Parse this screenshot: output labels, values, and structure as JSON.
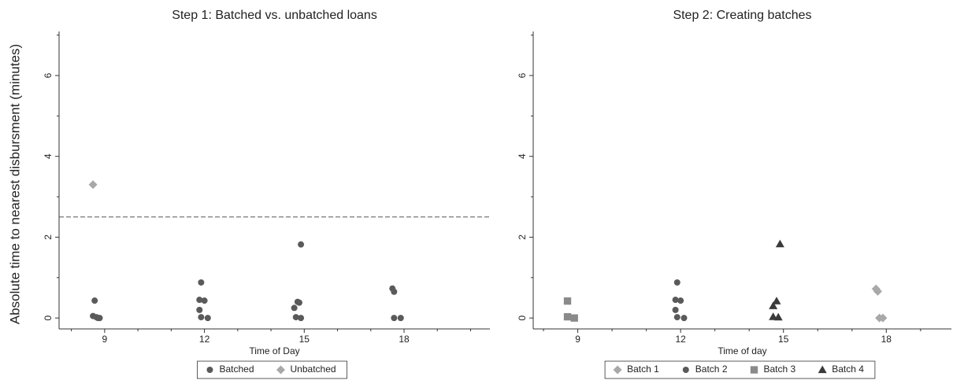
{
  "chart_data": [
    {
      "type": "scatter",
      "title": "Step 1: Batched vs. unbatched loans",
      "ylabel": "Absolute time to nearest disbursment (minutes)",
      "xlabel": "Time of Day",
      "xlim": [
        7.63,
        20.58
      ],
      "xticks": [
        9,
        12,
        15,
        18
      ],
      "xminorticks": [
        8,
        10,
        11,
        13,
        14,
        16,
        17,
        19,
        20
      ],
      "ylim": [
        -0.27,
        7.09
      ],
      "yticks": [
        0,
        2,
        4,
        6
      ],
      "yminorticks": [
        1,
        3,
        5,
        7
      ],
      "hline": 2.5,
      "legend": "bottom",
      "series": [
        {
          "name": "Batched",
          "color": "#5a5a5a",
          "marker": "circle",
          "x": [
            8.7,
            8.65,
            8.75,
            8.85,
            8.8,
            11.9,
            11.85,
            12.0,
            11.85,
            11.9,
            12.1,
            14.7,
            14.8,
            14.85,
            14.9,
            14.75,
            14.9,
            17.65,
            17.7,
            17.7,
            17.9
          ],
          "values": [
            0.43,
            0.05,
            0.02,
            0,
            0,
            0.88,
            0.45,
            0.43,
            0.2,
            0.02,
            0,
            0.25,
            0.4,
            0.38,
            1.82,
            0.02,
            0,
            0.73,
            0.65,
            0,
            0
          ]
        },
        {
          "name": "Unbatched",
          "color": "#a8a8a8",
          "marker": "diamond",
          "x": [
            8.65
          ],
          "values": [
            3.3
          ]
        }
      ]
    },
    {
      "type": "scatter",
      "title": "Step 2: Creating batches",
      "xlabel": "Time of day",
      "xlim": [
        7.7,
        19.9
      ],
      "xticks": [
        9,
        12,
        15,
        18
      ],
      "xminorticks": [
        8,
        10,
        11,
        13,
        14,
        16,
        17,
        19
      ],
      "ylim": [
        -0.27,
        7.09
      ],
      "yticks": [
        0,
        2,
        4,
        6
      ],
      "yminorticks": [
        1,
        3,
        5,
        7
      ],
      "legend": "bottom",
      "series": [
        {
          "name": "Batch 1",
          "color": "#a8a8a8",
          "marker": "diamond",
          "x": [
            17.7,
            17.75,
            17.8,
            17.9
          ],
          "values": [
            0.72,
            0.66,
            0,
            0
          ]
        },
        {
          "name": "Batch 2",
          "color": "#5a5a5a",
          "marker": "circle",
          "x": [
            11.9,
            11.85,
            12.0,
            11.85,
            11.9,
            12.1
          ],
          "values": [
            0.88,
            0.45,
            0.43,
            0.2,
            0.02,
            0
          ]
        },
        {
          "name": "Batch 3",
          "color": "#8a8a8a",
          "marker": "square",
          "x": [
            8.7,
            8.7,
            8.9
          ],
          "values": [
            0.42,
            0.03,
            0
          ]
        },
        {
          "name": "Batch 4",
          "color": "#3a3a3a",
          "marker": "triangle",
          "x": [
            14.9,
            14.8,
            14.7,
            14.7,
            14.85
          ],
          "values": [
            1.83,
            0.42,
            0.3,
            0.03,
            0.02
          ]
        }
      ]
    }
  ]
}
